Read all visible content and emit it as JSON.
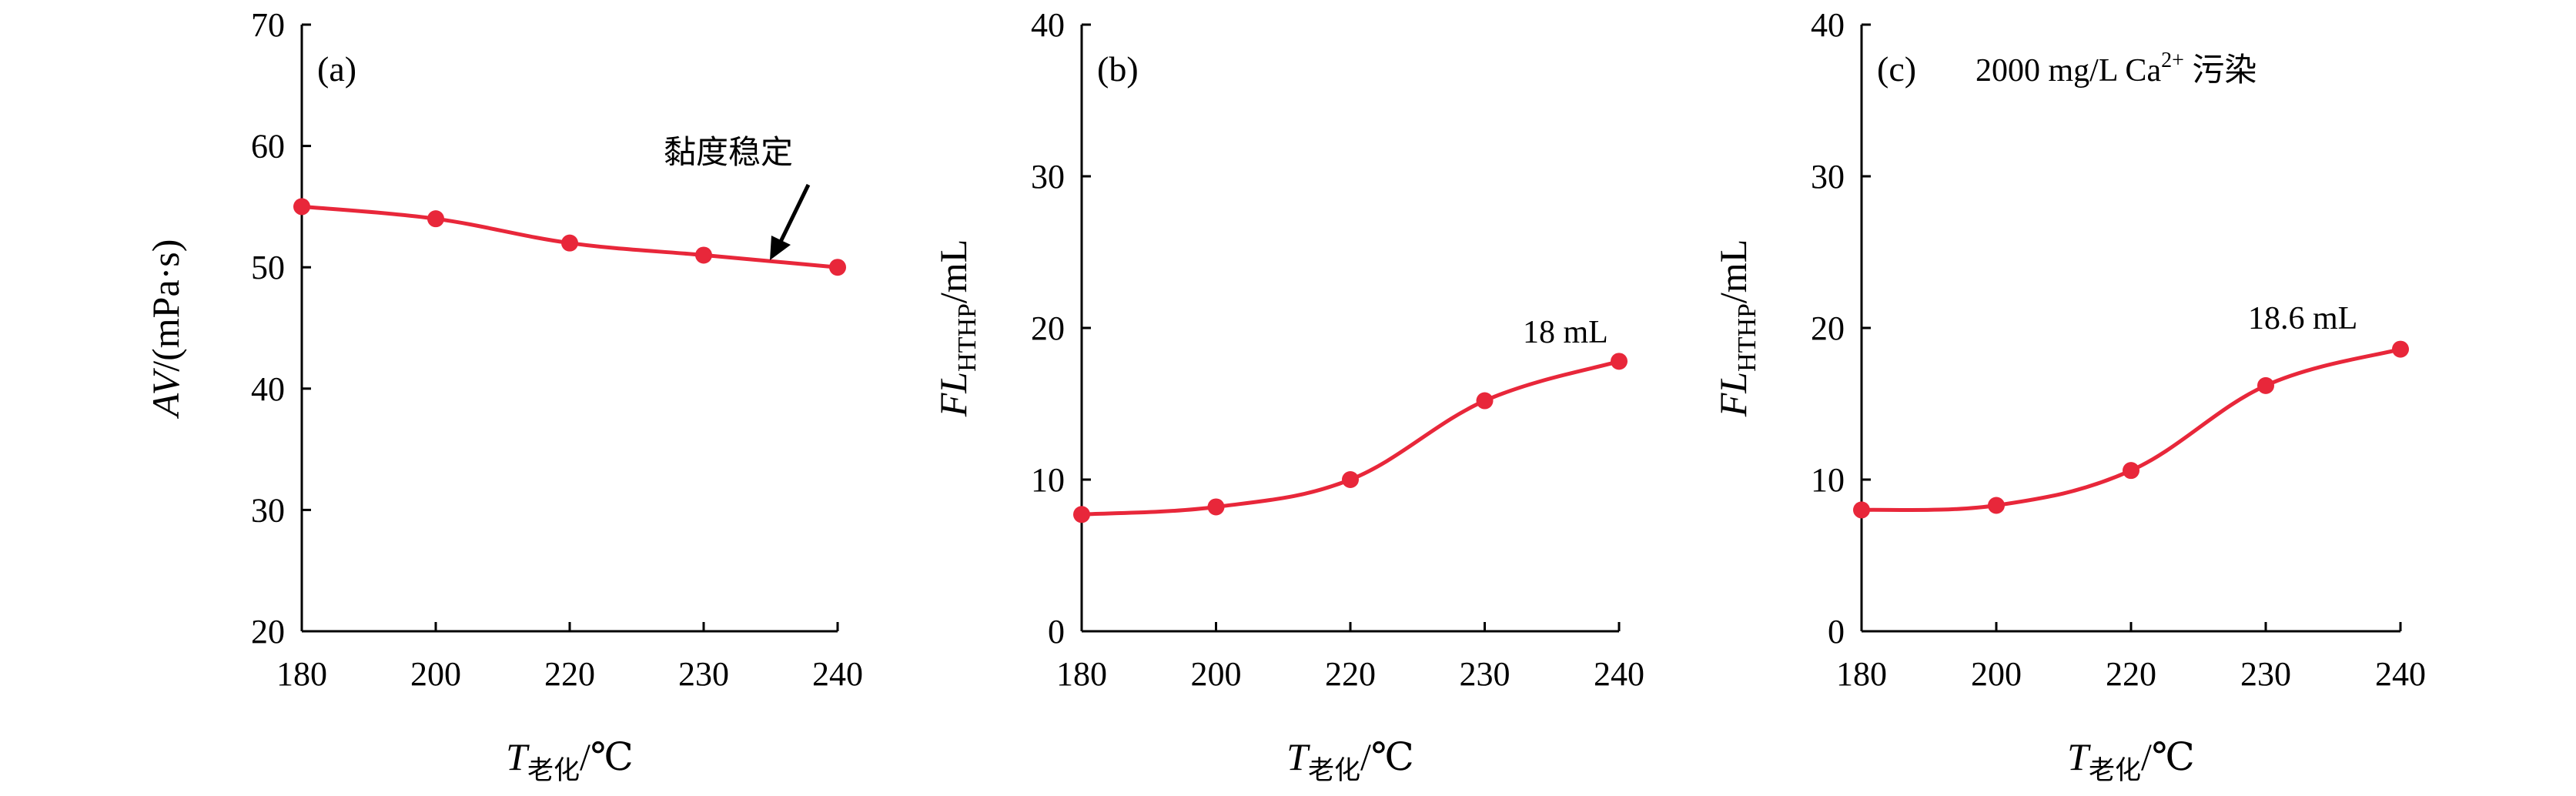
{
  "chart_data": [
    {
      "type": "line",
      "panel_label": "(a)",
      "x": [
        180,
        200,
        220,
        230,
        240
      ],
      "xtick_labels": [
        "180",
        "200",
        "220",
        "230",
        "240"
      ],
      "values": [
        55,
        54,
        52,
        51,
        50
      ],
      "ylim": [
        20,
        70
      ],
      "yticks": [
        20,
        30,
        40,
        50,
        60,
        70
      ],
      "ylabel": {
        "italic": "AV",
        "rest": "/(mPa·s)"
      },
      "xlabel": {
        "italic": "T",
        "sub": "老化",
        "rest": "/℃"
      },
      "annotation": {
        "text": "黏度稳定",
        "arrow": true
      },
      "color": "#e8273a"
    },
    {
      "type": "line",
      "panel_label": "(b)",
      "x": [
        180,
        200,
        220,
        230,
        240
      ],
      "xtick_labels": [
        "180",
        "200",
        "220",
        "230",
        "240"
      ],
      "values": [
        7.7,
        8.2,
        10.0,
        15.2,
        17.8
      ],
      "ylim": [
        0,
        40
      ],
      "yticks": [
        0,
        10,
        20,
        30,
        40
      ],
      "ylabel": {
        "italic": "FL",
        "sub": "HTHP",
        "rest": "/mL"
      },
      "xlabel": {
        "italic": "T",
        "sub": "老化",
        "rest": "/℃"
      },
      "annotation": {
        "text": "18 mL"
      },
      "color": "#e8273a"
    },
    {
      "type": "line",
      "panel_label": "(c)",
      "subtitle": {
        "text": "2000 mg/L Ca",
        "sup": "2+",
        "tail": " 污染"
      },
      "x": [
        180,
        200,
        220,
        230,
        240
      ],
      "xtick_labels": [
        "180",
        "200",
        "220",
        "230",
        "240"
      ],
      "values": [
        8.0,
        8.3,
        10.6,
        16.2,
        18.6
      ],
      "ylim": [
        0,
        40
      ],
      "yticks": [
        0,
        10,
        20,
        30,
        40
      ],
      "ylabel": {
        "italic": "FL",
        "sub": "HTHP",
        "rest": "/mL"
      },
      "xlabel": {
        "italic": "T",
        "sub": "老化",
        "rest": "/℃"
      },
      "annotation": {
        "text": "18.6 mL"
      },
      "color": "#e8273a"
    }
  ]
}
